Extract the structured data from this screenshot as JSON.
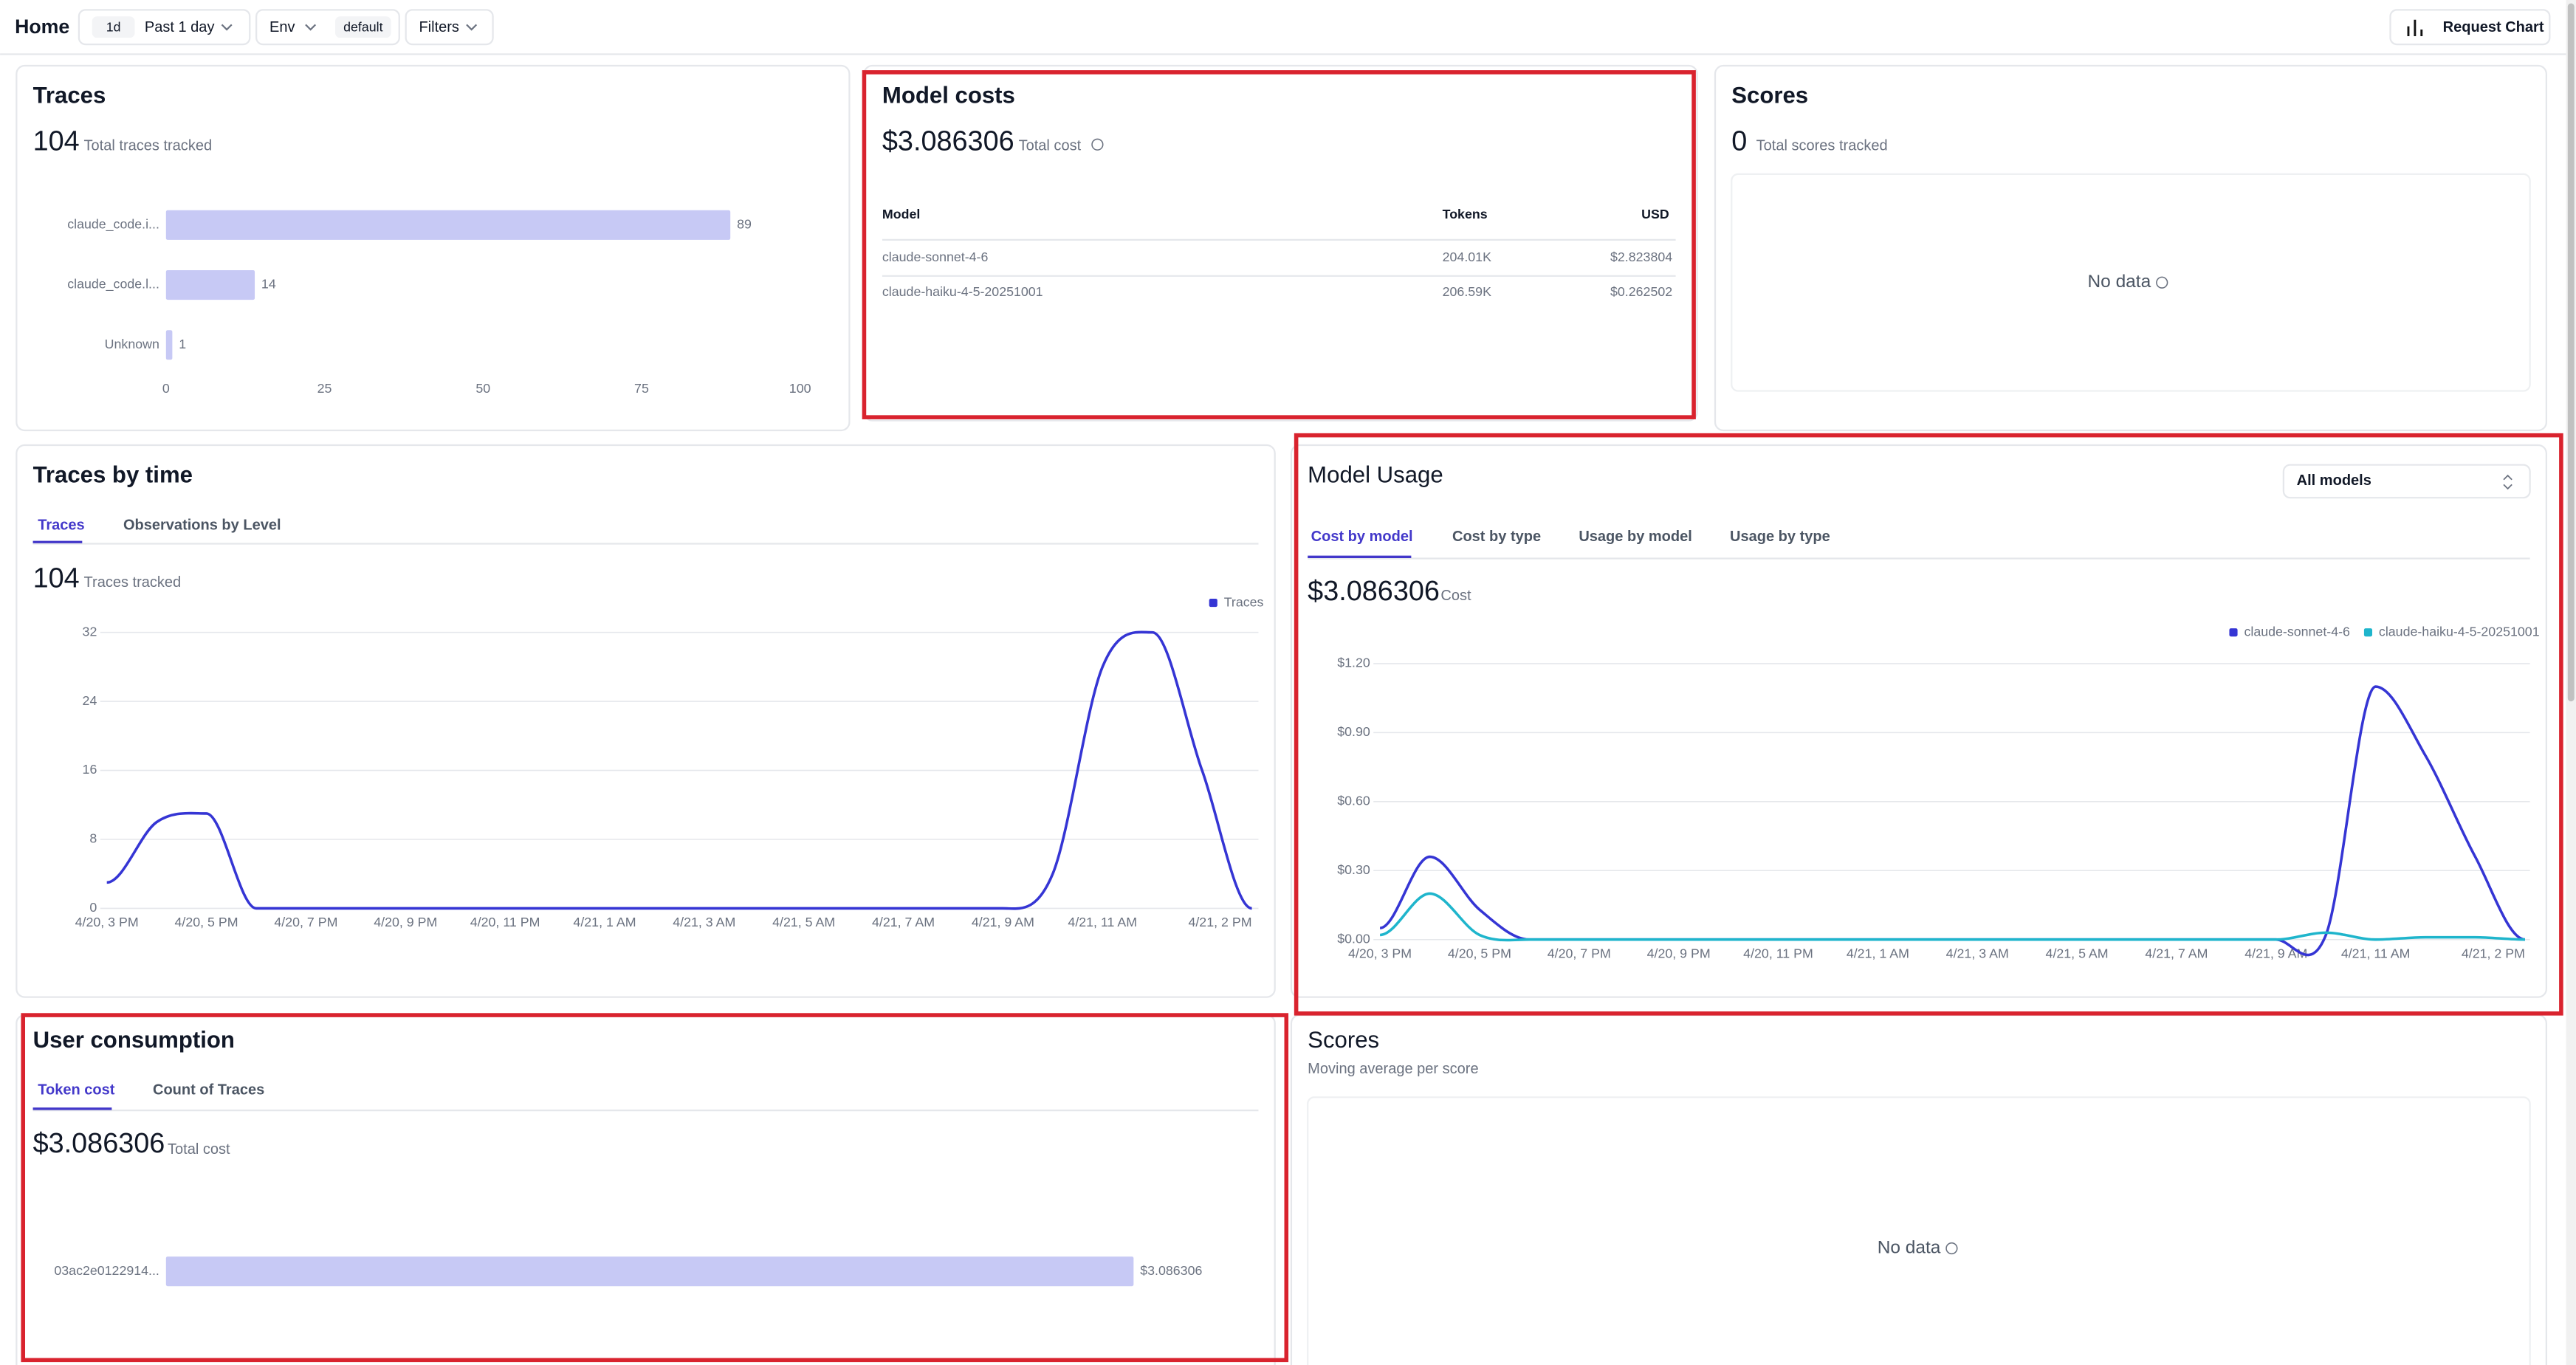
{
  "header": {
    "title": "Home",
    "range_short": "1d",
    "range": "Past 1 day",
    "env": "Env",
    "env_value": "default",
    "filters": "Filters",
    "request_chart": "Request Chart"
  },
  "traces": {
    "title": "Traces",
    "total": "104",
    "total_label": "Total traces tracked",
    "chart": {
      "type": "hbar",
      "categories": [
        "claude_code.i...",
        "claude_code.l...",
        "Unknown"
      ],
      "values": [
        89,
        14,
        1
      ],
      "color": "#c7c9f5",
      "xlim": [
        0,
        100
      ],
      "xticks": [
        0,
        25,
        50,
        75,
        100
      ]
    }
  },
  "model_costs": {
    "title": "Model costs",
    "total": "$3.086306",
    "total_label": "Total cost",
    "table": {
      "columns": [
        "Model",
        "Tokens",
        "USD"
      ],
      "rows": [
        [
          "claude-sonnet-4-6",
          "204.01K",
          "$2.823804"
        ],
        [
          "claude-haiku-4-5-20251001",
          "206.59K",
          "$0.262502"
        ]
      ]
    }
  },
  "scores": {
    "title": "Scores",
    "total": "0",
    "total_label": "Total scores tracked",
    "empty": "No data"
  },
  "traces_by_time": {
    "title": "Traces by time",
    "tabs": [
      "Traces",
      "Observations by Level"
    ],
    "total": "104",
    "total_label": "Traces tracked",
    "chart": {
      "type": "line",
      "x": [
        "4/20, 3 PM",
        null,
        "4/20, 5 PM",
        null,
        "4/20, 7 PM",
        null,
        "4/20, 9 PM",
        null,
        "4/20, 11 PM",
        null,
        "4/21, 1 AM",
        null,
        "4/21, 3 AM",
        null,
        "4/21, 5 AM",
        null,
        "4/21, 7 AM",
        null,
        "4/21, 9 AM",
        null,
        "4/21, 11 AM",
        null,
        null,
        "4/21, 2 PM"
      ],
      "series": [
        {
          "name": "Traces",
          "color": "#3535d4",
          "values": [
            3,
            10,
            11,
            0,
            0,
            0,
            0,
            0,
            0,
            0,
            0,
            0,
            0,
            0,
            0,
            0,
            0,
            0,
            0,
            4,
            28,
            32,
            16,
            0
          ]
        }
      ],
      "ylim": [
        0,
        32
      ],
      "yticks": [
        0,
        8,
        16,
        24,
        32
      ],
      "grid": true,
      "legend": "top-right"
    }
  },
  "model_usage": {
    "title": "Model Usage",
    "select": "All models",
    "tabs": [
      "Cost by model",
      "Cost by type",
      "Usage by model",
      "Usage by type"
    ],
    "total": "$3.086306",
    "total_label": "Cost",
    "chart": {
      "type": "line",
      "x": [
        "4/20, 3 PM",
        null,
        "4/20, 5 PM",
        null,
        "4/20, 7 PM",
        null,
        "4/20, 9 PM",
        null,
        "4/20, 11 PM",
        null,
        "4/21, 1 AM",
        null,
        "4/21, 3 AM",
        null,
        "4/21, 5 AM",
        null,
        "4/21, 7 AM",
        null,
        "4/21, 9 AM",
        null,
        "4/21, 11 AM",
        null,
        null,
        "4/21, 2 PM"
      ],
      "series": [
        {
          "name": "claude-sonnet-4-6",
          "color": "#3535d4",
          "values": [
            0.05,
            0.36,
            0.13,
            0,
            0,
            0,
            0,
            0,
            0,
            0,
            0,
            0,
            0,
            0,
            0,
            0,
            0,
            0,
            0,
            0.02,
            1.1,
            0.8,
            0.36,
            0
          ]
        },
        {
          "name": "claude-haiku-4-5-20251001",
          "color": "#1fb5cc",
          "values": [
            0.02,
            0.2,
            0.02,
            0,
            0,
            0,
            0,
            0,
            0,
            0,
            0,
            0,
            0,
            0,
            0,
            0,
            0,
            0,
            0,
            0.03,
            0,
            0.01,
            0.01,
            0
          ]
        }
      ],
      "ylim": [
        0,
        1.2
      ],
      "yticks": [
        {
          "value": 0,
          "label": "$0.00"
        },
        {
          "value": 0.3,
          "label": "$0.30"
        },
        {
          "value": 0.6,
          "label": "$0.60"
        },
        {
          "value": 0.9,
          "label": "$0.90"
        },
        {
          "value": 1.2,
          "label": "$1.20"
        }
      ],
      "grid": true,
      "legend": "top-right"
    }
  },
  "user_consumption": {
    "title": "User consumption",
    "tabs": [
      "Token cost",
      "Count of Traces"
    ],
    "total": "$3.086306",
    "total_label": "Total cost",
    "chart": {
      "type": "hbar",
      "categories": [
        "03ac2e0122914..."
      ],
      "values": [
        3.086306
      ],
      "value_labels": [
        "$3.086306"
      ],
      "color": "#c7c9f5"
    }
  },
  "scores_avg": {
    "title": "Scores",
    "subtitle": "Moving average per score",
    "empty": "No data"
  }
}
